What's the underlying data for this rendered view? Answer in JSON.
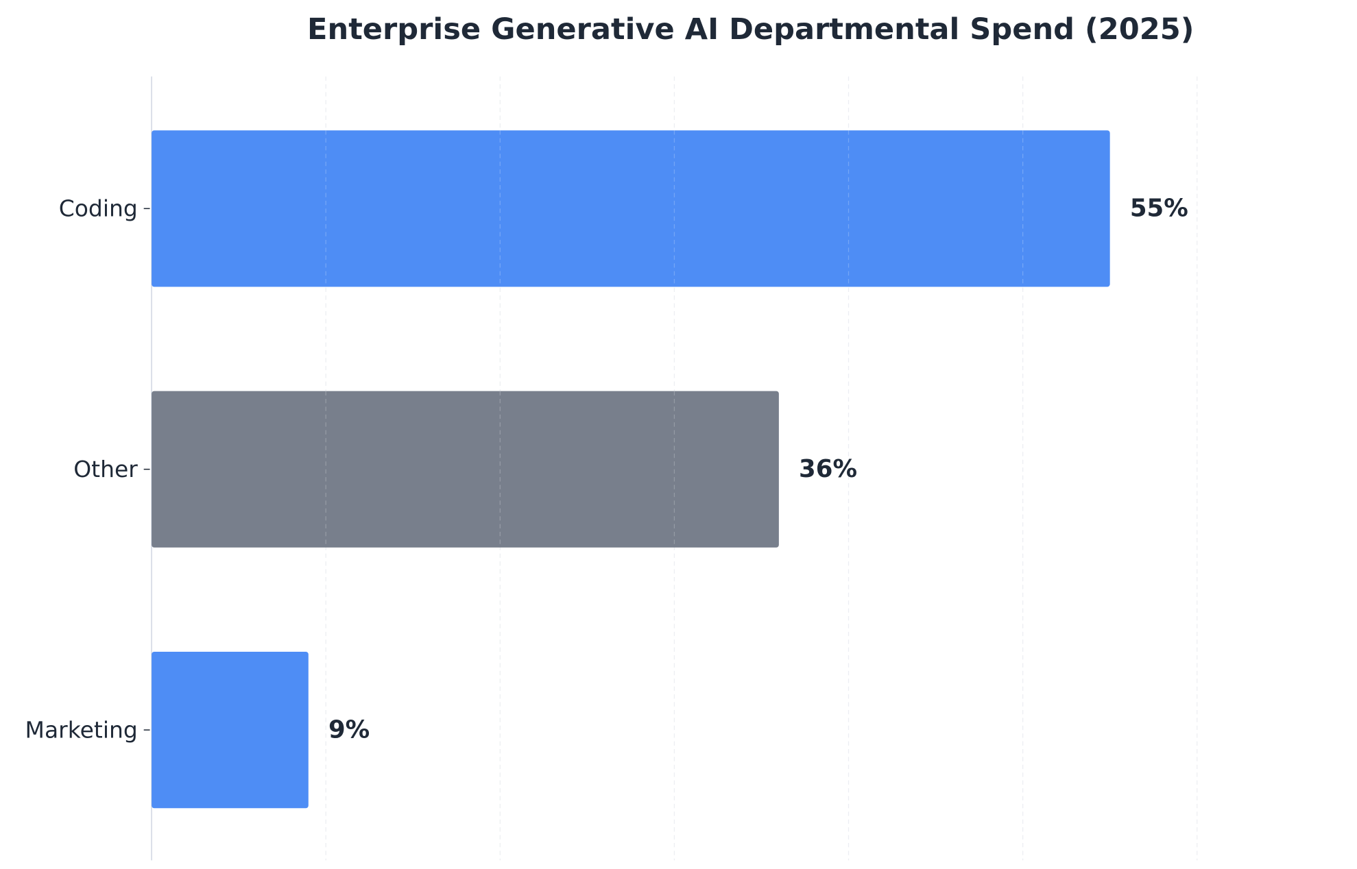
{
  "chart_data": {
    "type": "bar",
    "orientation": "horizontal",
    "title": "Enterprise Generative AI Departmental Spend (2025)",
    "xlabel": "",
    "ylabel": "",
    "categories": [
      "Coding",
      "Other",
      "Marketing"
    ],
    "values": [
      55,
      36,
      9
    ],
    "data_labels": [
      "55%",
      "36%",
      "9%"
    ],
    "bar_colors": [
      "#4e8df5",
      "#787f8c",
      "#4e8df5"
    ],
    "xlim": [
      0,
      69
    ],
    "grid": "vertical dashed, every 10",
    "legend": "none",
    "x_tick_labels_visible": false
  }
}
